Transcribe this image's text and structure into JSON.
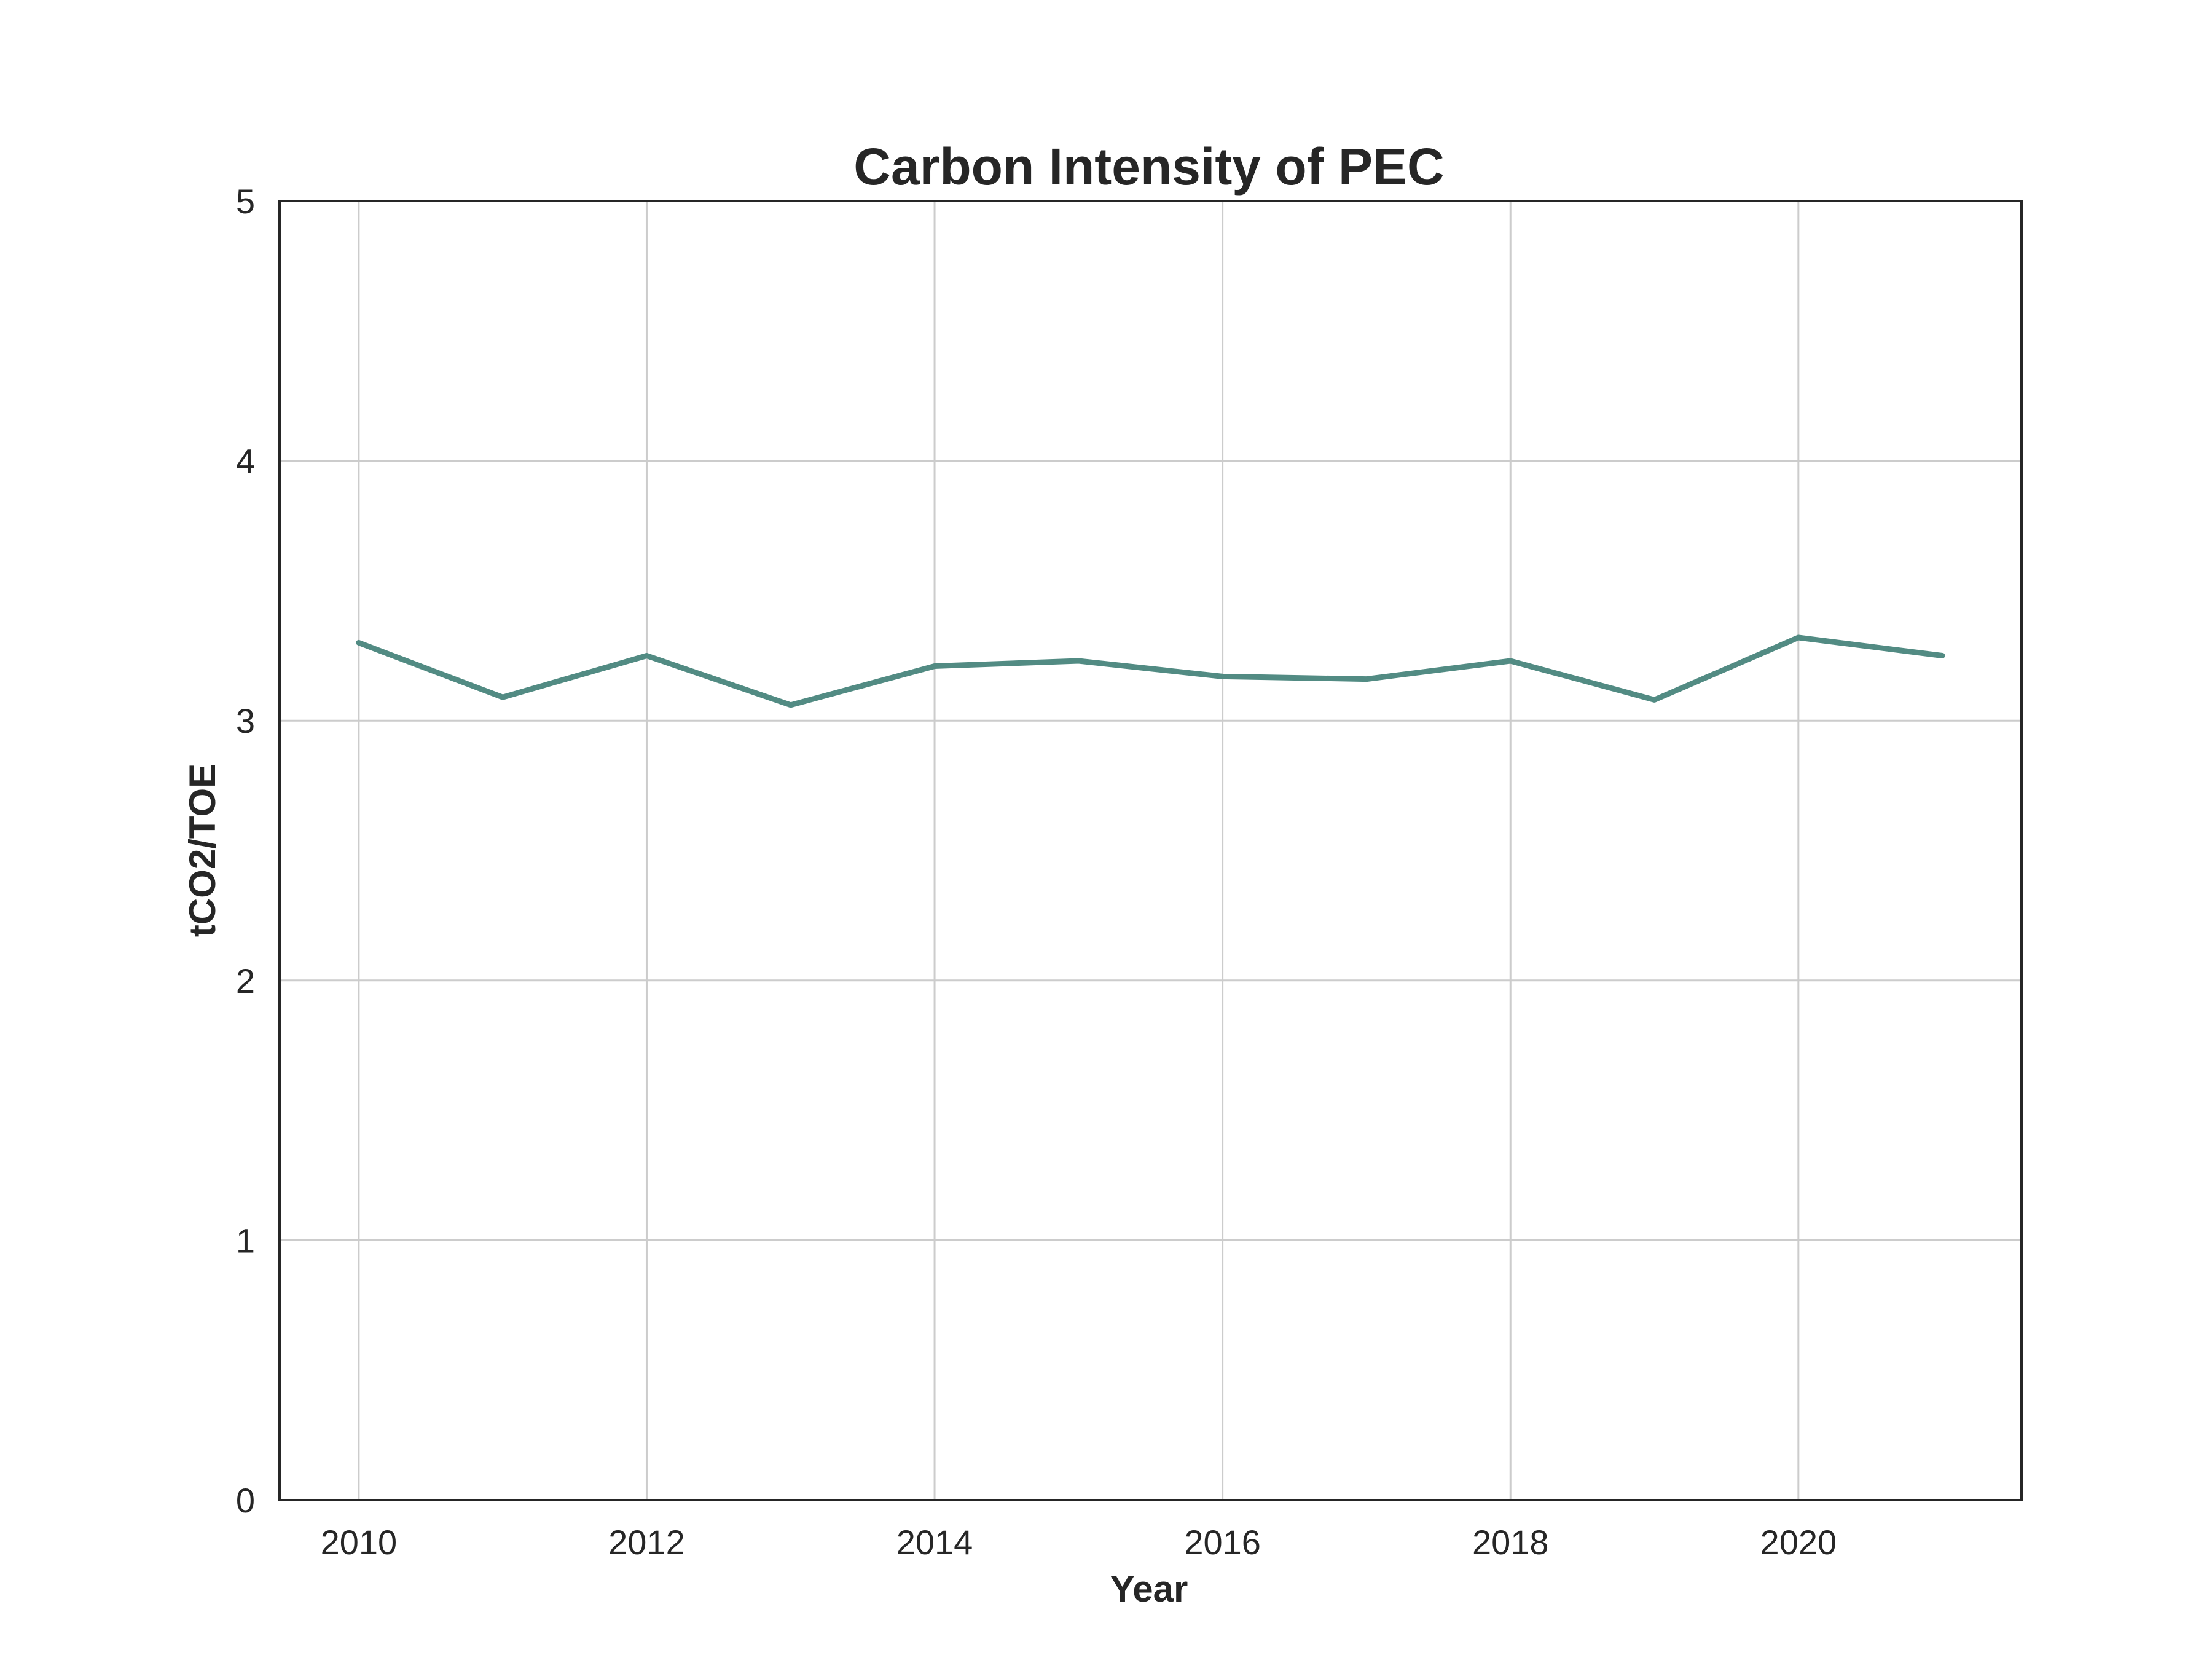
{
  "chart_data": {
    "type": "line",
    "title": "Carbon Intensity of PEC",
    "xlabel": "Year",
    "ylabel": "tCO2/TOE",
    "x": [
      2010,
      2011,
      2012,
      2013,
      2014,
      2015,
      2016,
      2017,
      2018,
      2019,
      2020,
      2021
    ],
    "series": [
      {
        "values": [
          3.3,
          3.09,
          3.25,
          3.06,
          3.21,
          3.23,
          3.17,
          3.16,
          3.23,
          3.08,
          3.32,
          3.25
        ],
        "color": "#528b83"
      }
    ],
    "xlim": [
      2009.45,
      2021.55
    ],
    "ylim": [
      0,
      5
    ],
    "xticks": [
      "2010",
      "2012",
      "2014",
      "2016",
      "2018",
      "2020"
    ],
    "yticks": [
      "0",
      "1",
      "2",
      "3",
      "4",
      "5"
    ],
    "grid": true,
    "legend": "none"
  }
}
